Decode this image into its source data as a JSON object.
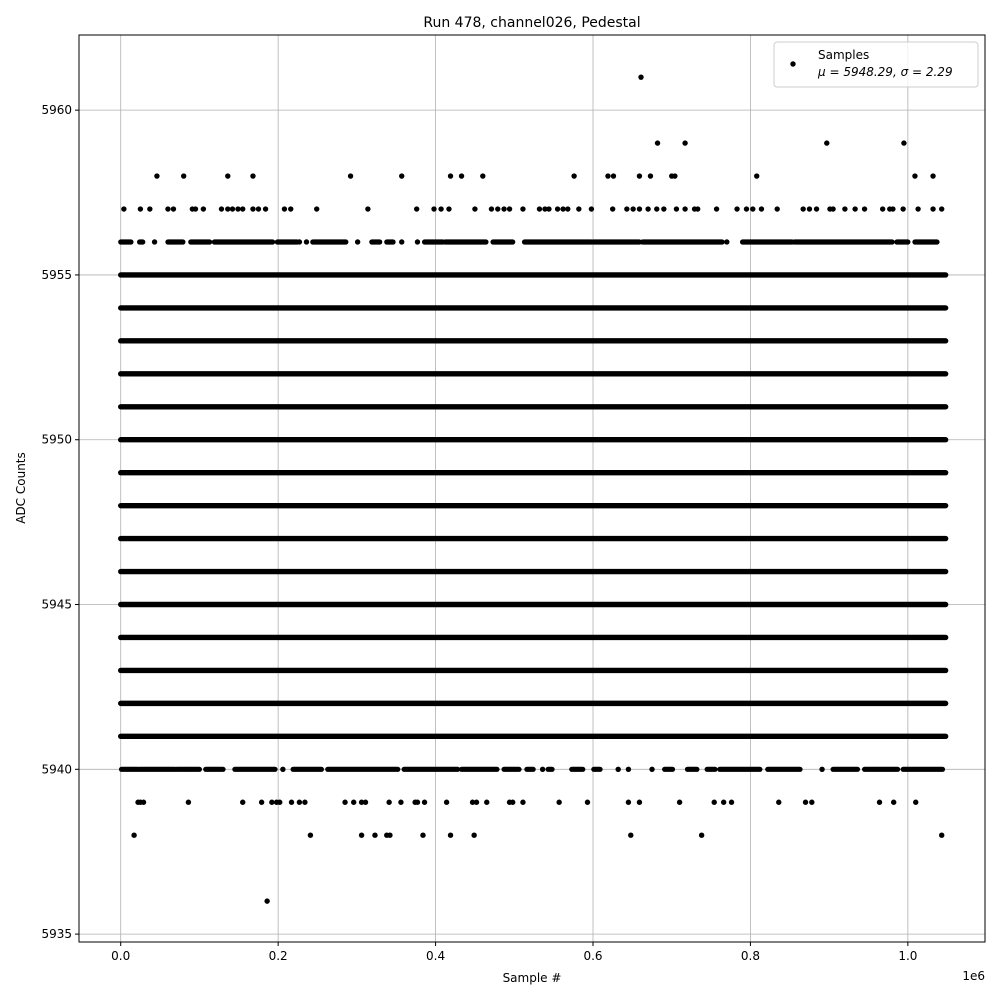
{
  "chart_data": {
    "type": "scatter",
    "title": "Run 478, channel026, Pedestal",
    "xlabel": "Sample #",
    "ylabel": "ADC Counts",
    "x_offset_label": "1e6",
    "x_scale": 1000000,
    "xlim": [
      -0.053,
      1.098
    ],
    "ylim": [
      5934.76,
      5962.28
    ],
    "xticks": [
      0.0,
      0.2,
      0.4,
      0.6,
      0.8,
      1.0
    ],
    "xtick_labels": [
      "0.0",
      "0.2",
      "0.4",
      "0.6",
      "0.8",
      "1.0"
    ],
    "yticks": [
      5935,
      5940,
      5945,
      5950,
      5955,
      5960
    ],
    "ytick_labels": [
      "5935",
      "5940",
      "5945",
      "5950",
      "5955",
      "5960"
    ],
    "grid": true,
    "marker_color": "#000000",
    "grid_color": "#b0b0b0",
    "legend": {
      "placement": "top-right",
      "entries": [
        {
          "label": "Samples",
          "stats": "μ = 5948.29, σ = 2.29"
        }
      ]
    },
    "series": [
      {
        "name": "Samples",
        "dense_levels": {
          "y": [
            5941,
            5942,
            5943,
            5944,
            5945,
            5946,
            5947,
            5948,
            5949,
            5950,
            5951,
            5952,
            5953,
            5954,
            5955
          ],
          "x_range": [
            0.0,
            1.048
          ]
        },
        "segment_levels": [
          {
            "y": 5956,
            "x_ranges": [
              [
                0.0,
                0.013
              ],
              [
                0.024,
                0.028
              ],
              [
                0.043,
                0.043
              ],
              [
                0.06,
                0.079
              ],
              [
                0.089,
                0.113
              ],
              [
                0.119,
                0.193
              ],
              [
                0.199,
                0.224
              ],
              [
                0.227,
                0.227
              ],
              [
                0.236,
                0.236
              ],
              [
                0.244,
                0.286
              ],
              [
                0.301,
                0.301
              ],
              [
                0.319,
                0.329
              ],
              [
                0.338,
                0.346
              ],
              [
                0.357,
                0.357
              ],
              [
                0.377,
                0.377
              ],
              [
                0.386,
                0.409
              ],
              [
                0.412,
                0.464
              ],
              [
                0.473,
                0.498
              ],
              [
                0.513,
                0.598
              ],
              [
                0.6,
                0.659
              ],
              [
                0.663,
                0.764
              ],
              [
                0.77,
                0.77
              ],
              [
                0.79,
                0.853
              ],
              [
                0.856,
                0.98
              ],
              [
                0.986,
                1.0
              ],
              [
                1.009,
                1.037
              ]
            ]
          },
          {
            "y": 5940,
            "x_ranges": [
              [
                0.001,
                0.022
              ],
              [
                0.024,
                0.069
              ],
              [
                0.071,
                0.1
              ],
              [
                0.108,
                0.13
              ],
              [
                0.145,
                0.196
              ],
              [
                0.206,
                0.206
              ],
              [
                0.219,
                0.255
              ],
              [
                0.263,
                0.352
              ],
              [
                0.36,
                0.428
              ],
              [
                0.433,
                0.478
              ],
              [
                0.487,
                0.506
              ],
              [
                0.516,
                0.524
              ],
              [
                0.536,
                0.536
              ],
              [
                0.543,
                0.548
              ],
              [
                0.573,
                0.587
              ],
              [
                0.601,
                0.609
              ],
              [
                0.632,
                0.632
              ],
              [
                0.645,
                0.645
              ],
              [
                0.675,
                0.675
              ],
              [
                0.691,
                0.701
              ],
              [
                0.72,
                0.732
              ],
              [
                0.745,
                0.755
              ],
              [
                0.761,
                0.812
              ],
              [
                0.822,
                0.863
              ],
              [
                0.891,
                0.891
              ],
              [
                0.905,
                0.936
              ],
              [
                0.945,
                0.987
              ],
              [
                0.994,
                1.044
              ]
            ]
          }
        ],
        "points": [
          {
            "y": 5961,
            "x": [
              0.661
            ]
          },
          {
            "y": 5959,
            "x": [
              0.682,
              0.717,
              0.897,
              0.995
            ]
          },
          {
            "y": 5958,
            "x": [
              0.046,
              0.08,
              0.136,
              0.168,
              0.292,
              0.357,
              0.419,
              0.433,
              0.46,
              0.576,
              0.619,
              0.626,
              0.659,
              0.673,
              0.7,
              0.704,
              0.808,
              1.009,
              1.032
            ]
          },
          {
            "y": 5957,
            "x": [
              0.004,
              0.025,
              0.037,
              0.06,
              0.067,
              0.091,
              0.095,
              0.105,
              0.128,
              0.136,
              0.142,
              0.149,
              0.155,
              0.168,
              0.175,
              0.184,
              0.208,
              0.216,
              0.249,
              0.314,
              0.376,
              0.398,
              0.407,
              0.417,
              0.45,
              0.471,
              0.479,
              0.487,
              0.494,
              0.511,
              0.532,
              0.539,
              0.544,
              0.555,
              0.562,
              0.568,
              0.582,
              0.598,
              0.625,
              0.643,
              0.651,
              0.659,
              0.67,
              0.681,
              0.69,
              0.706,
              0.717,
              0.729,
              0.733,
              0.757,
              0.783,
              0.795,
              0.803,
              0.814,
              0.834,
              0.867,
              0.875,
              0.884,
              0.901,
              0.905,
              0.92,
              0.933,
              0.945,
              0.968,
              0.977,
              0.981,
              0.994,
              1.013,
              1.032,
              1.043
            ]
          },
          {
            "y": 5939,
            "x": [
              0.022,
              0.025,
              0.029,
              0.086,
              0.155,
              0.179,
              0.192,
              0.198,
              0.202,
              0.217,
              0.227,
              0.234,
              0.285,
              0.296,
              0.306,
              0.311,
              0.341,
              0.356,
              0.374,
              0.377,
              0.386,
              0.414,
              0.447,
              0.452,
              0.465,
              0.494,
              0.498,
              0.511,
              0.557,
              0.593,
              0.645,
              0.659,
              0.71,
              0.754,
              0.766,
              0.776,
              0.836,
              0.87,
              0.878,
              0.964,
              0.982,
              1.01
            ]
          },
          {
            "y": 5938,
            "x": [
              0.017,
              0.241,
              0.306,
              0.323,
              0.338,
              0.342,
              0.384,
              0.419,
              0.449,
              0.648,
              0.738,
              1.043
            ]
          },
          {
            "y": 5936,
            "x": [
              0.186
            ]
          }
        ]
      }
    ]
  }
}
